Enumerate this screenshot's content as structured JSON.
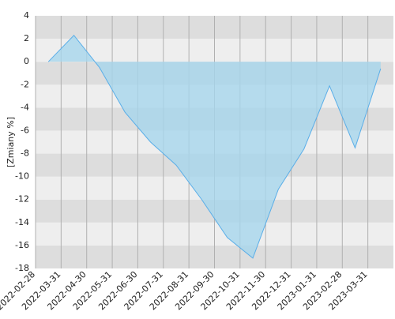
{
  "chart_data": {
    "type": "area",
    "y_label": "[Zmiany %]",
    "x": [
      0.5,
      1.5,
      2.5,
      3.5,
      4.5,
      5.5,
      6.5,
      7.5,
      8.5,
      9.5,
      10.5,
      11.5,
      12.5,
      13.5
    ],
    "series": [
      {
        "name": "Zmiany",
        "color": "#5aaee8",
        "fill": "#a6d6ec",
        "values": [
          0,
          2.3,
          -0.5,
          -4.4,
          -7,
          -9,
          -12,
          -15.3,
          -17.1,
          -11.1,
          -7.6,
          -2.1,
          -7.5,
          -0.6
        ]
      }
    ],
    "xlim": [
      0,
      14
    ],
    "xticks": [
      {
        "value": 0,
        "label": "2022-02-28"
      },
      {
        "value": 1,
        "label": "2022-03-31"
      },
      {
        "value": 2,
        "label": "2022-04-30"
      },
      {
        "value": 3,
        "label": "2022-05-31"
      },
      {
        "value": 4,
        "label": "2022-06-30"
      },
      {
        "value": 5,
        "label": "2022-07-31"
      },
      {
        "value": 6,
        "label": "2022-08-31"
      },
      {
        "value": 7,
        "label": "2022-09-30"
      },
      {
        "value": 8,
        "label": "2022-10-31"
      },
      {
        "value": 9,
        "label": "2022-11-30"
      },
      {
        "value": 10,
        "label": "2022-12-31"
      },
      {
        "value": 11,
        "label": "2023-01-31"
      },
      {
        "value": 12,
        "label": "2023-02-28"
      },
      {
        "value": 13,
        "label": "2023-03-31"
      }
    ],
    "ylim": [
      -18,
      4
    ],
    "yticks": [
      -18,
      -16,
      -14,
      -12,
      -10,
      -8,
      -6,
      -4,
      -2,
      0,
      2,
      4
    ],
    "grid": true,
    "band_colors": [
      "#dddddd",
      "#eeeeee"
    ]
  }
}
